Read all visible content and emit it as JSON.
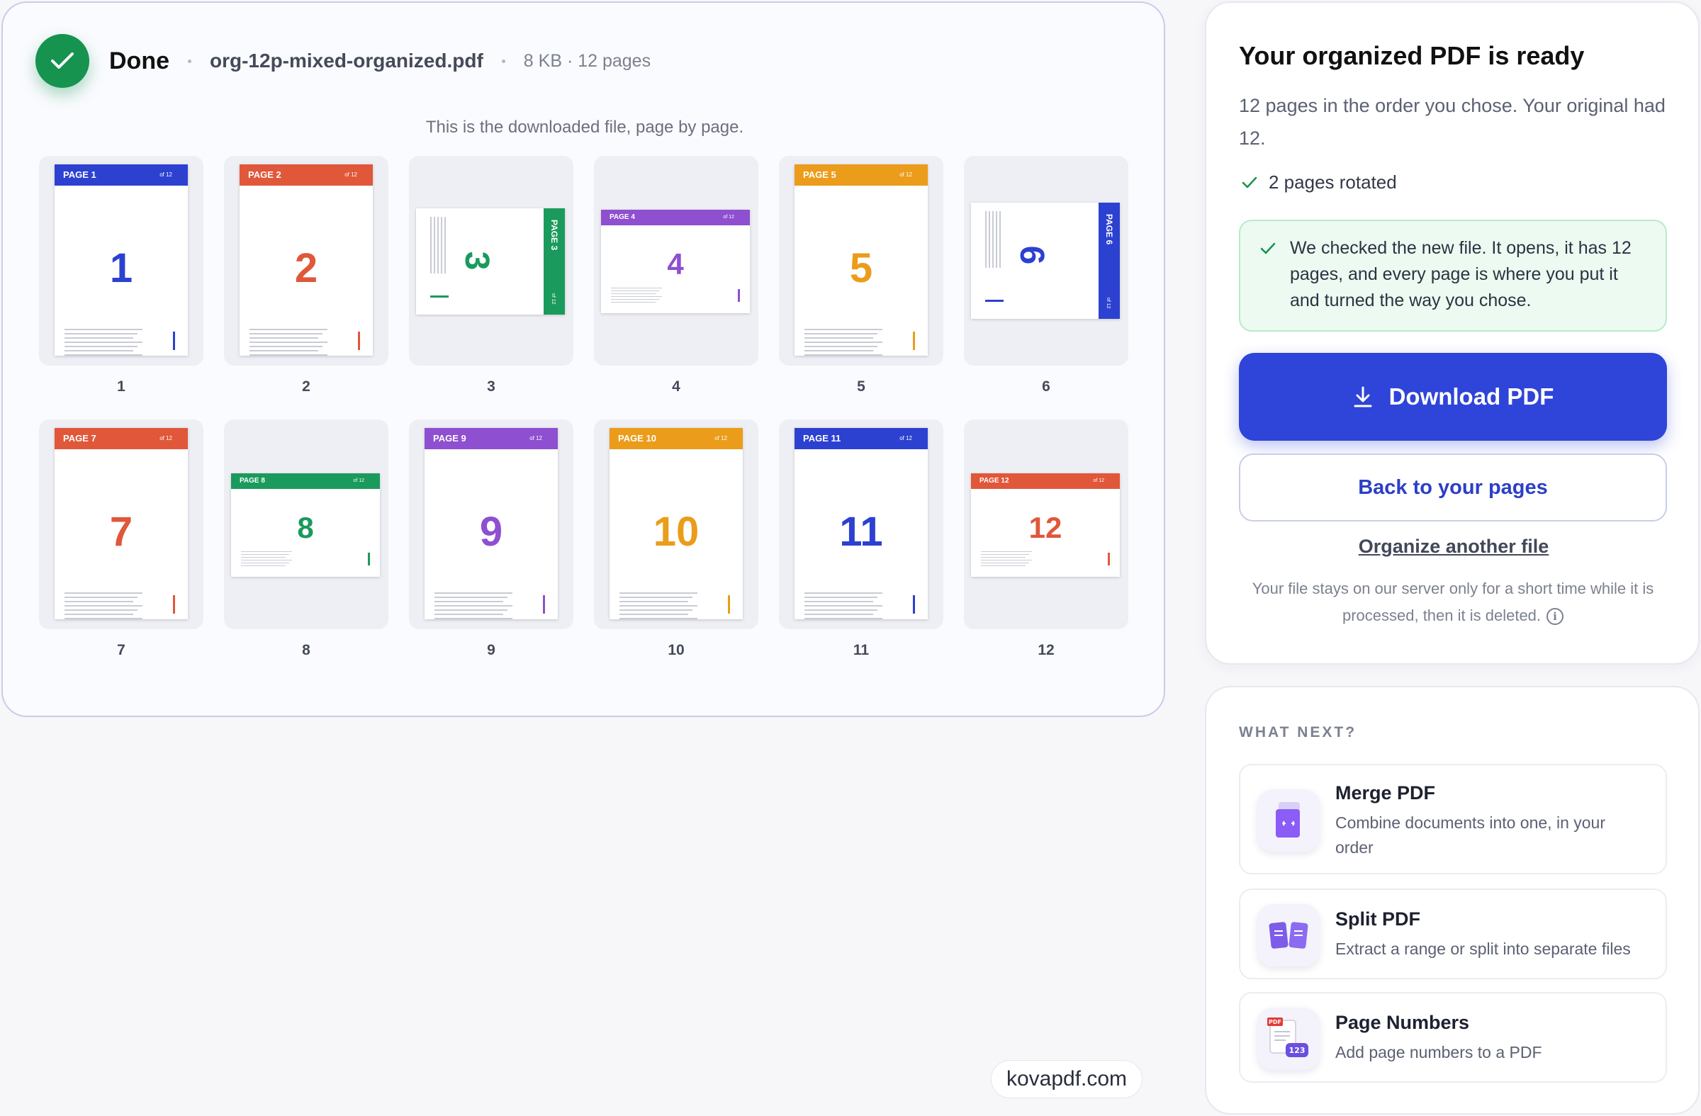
{
  "header": {
    "status_label": "Done",
    "file_name": "org-12p-mixed-organized.pdf",
    "file_meta": "8 KB · 12 pages"
  },
  "caption": "This is the downloaded file, page by page.",
  "colors": {
    "blue": "#2c41d0",
    "red": "#e0573a",
    "green": "#1a9a5c",
    "purple": "#8e4fd0",
    "orange": "#eb9c1a",
    "accent": "#2f44d8",
    "success": "#15934f"
  },
  "pages": [
    {
      "num": "1",
      "label": "PAGE 1",
      "of": "of 12",
      "color": "#2c41d0",
      "orient": "portrait"
    },
    {
      "num": "2",
      "label": "PAGE 2",
      "of": "of 12",
      "color": "#e0573a",
      "orient": "portrait"
    },
    {
      "num": "3",
      "label": "PAGE 3",
      "of": "of 12",
      "color": "#1a9a5c",
      "orient": "rotated"
    },
    {
      "num": "4",
      "label": "PAGE 4",
      "of": "of 12",
      "color": "#8e4fd0",
      "orient": "landscape"
    },
    {
      "num": "5",
      "label": "PAGE 5",
      "of": "of 12",
      "color": "#eb9c1a",
      "orient": "portrait"
    },
    {
      "num": "6",
      "label": "PAGE 6",
      "of": "of 12",
      "color": "#2c41d0",
      "orient": "rotated"
    },
    {
      "num": "7",
      "label": "PAGE 7",
      "of": "of 12",
      "color": "#e0573a",
      "orient": "portrait"
    },
    {
      "num": "8",
      "label": "PAGE 8",
      "of": "of 12",
      "color": "#1a9a5c",
      "orient": "landscape"
    },
    {
      "num": "9",
      "label": "PAGE 9",
      "of": "of 12",
      "color": "#8e4fd0",
      "orient": "portrait"
    },
    {
      "num": "10",
      "label": "PAGE 10",
      "of": "of 12",
      "color": "#eb9c1a",
      "orient": "portrait"
    },
    {
      "num": "11",
      "label": "PAGE 11",
      "of": "of 12",
      "color": "#2c41d0",
      "orient": "portrait"
    },
    {
      "num": "12",
      "label": "PAGE 12",
      "of": "of 12",
      "color": "#e0573a",
      "orient": "landscape"
    }
  ],
  "ready": {
    "title": "Your organized PDF is ready",
    "subtitle": "12 pages in the order you chose. Your original had 12.",
    "rotated_note": "2 pages rotated",
    "checked_text": "We checked the new file. It opens, it has 12 pages, and every page is where you put it and turned the way you chose.",
    "download_label": "Download PDF",
    "back_label": "Back to your pages",
    "another_label": "Organize another file",
    "privacy_note": "Your file stays on our server only for a short time while it is processed, then it is deleted.",
    "info_icon": "i"
  },
  "next": {
    "title": "WHAT NEXT?",
    "tools": [
      {
        "name": "Merge PDF",
        "desc": "Combine documents into one, in your order",
        "icon": "merge-pdf-icon"
      },
      {
        "name": "Split PDF",
        "desc": "Extract a range or split into separate files",
        "icon": "split-pdf-icon"
      },
      {
        "name": "Page Numbers",
        "desc": "Add page numbers to a PDF",
        "icon": "page-numbers-icon"
      }
    ],
    "badge_pdf": "PDF",
    "badge_123": "123"
  },
  "brand": "kovapdf.com"
}
